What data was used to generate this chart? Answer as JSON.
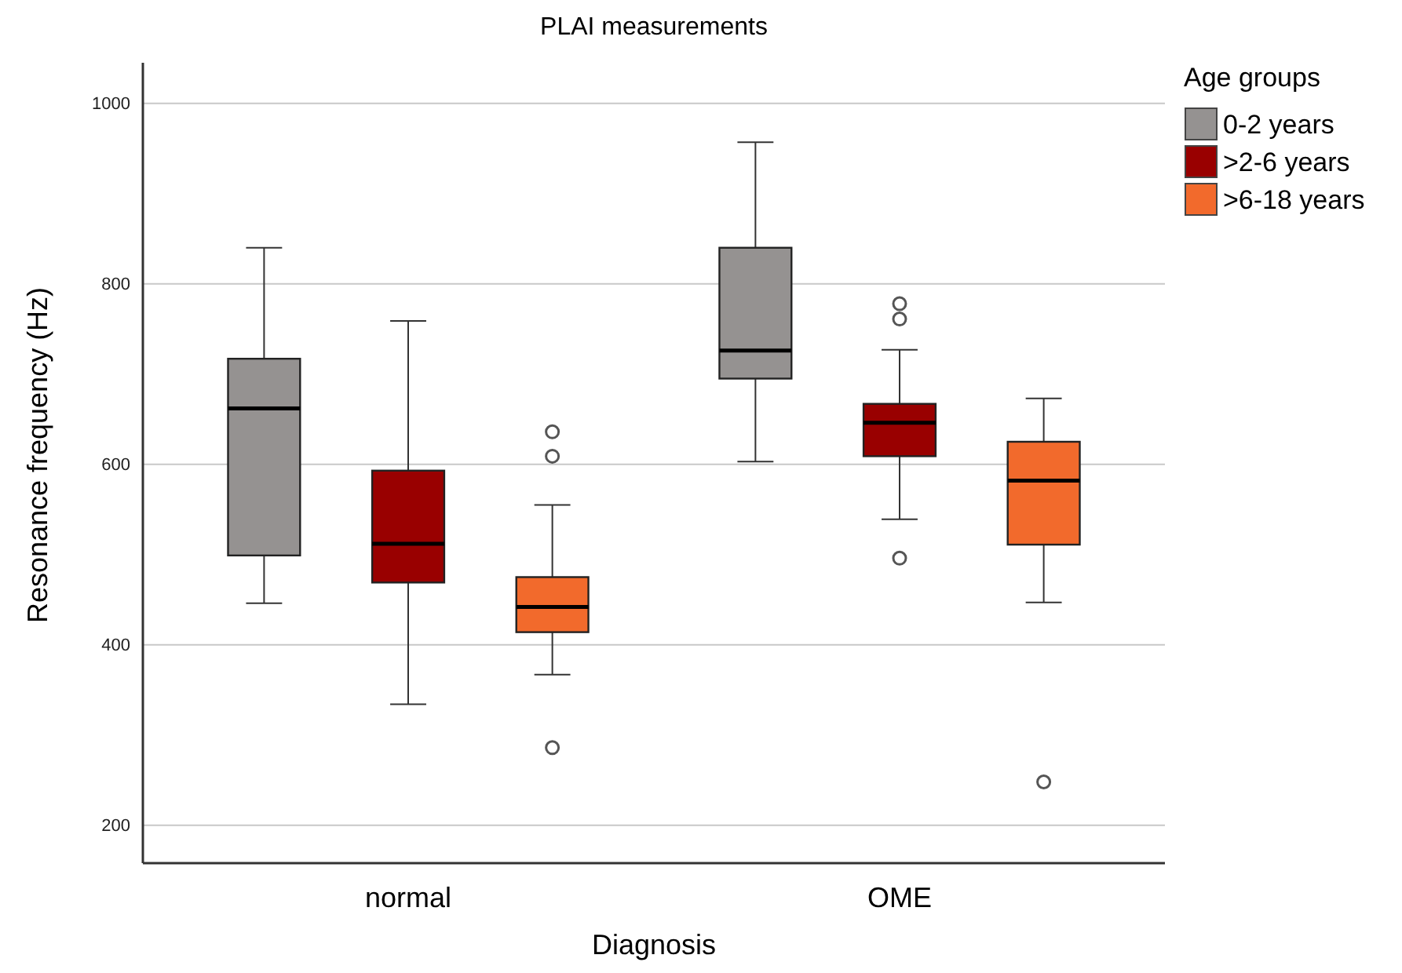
{
  "chart_data": {
    "type": "box",
    "title": "PLAI measurements",
    "xlabel": "Diagnosis",
    "ylabel": "Resonance frequency (Hz)",
    "legend_title": "Age groups",
    "categories": [
      "normal",
      "OME"
    ],
    "series": [
      {
        "name": "0-2 years",
        "color": "#959291",
        "boxes": [
          {
            "low": 446,
            "q1": 499,
            "median": 662,
            "q3": 717,
            "high": 840
          },
          {
            "low": 603,
            "q1": 695,
            "median": 726,
            "q3": 840,
            "high": 957
          }
        ]
      },
      {
        "name": ">2-6 years",
        "color": "#990000",
        "boxes": [
          {
            "low": 334,
            "q1": 469,
            "median": 512,
            "q3": 593,
            "high": 759
          },
          {
            "low": 539,
            "q1": 609,
            "median": 646,
            "q3": 667,
            "high": 727,
            "outliers": [
              778,
              761,
              496
            ]
          }
        ]
      },
      {
        "name": ">6-18 years",
        "color": "#f26a2c",
        "boxes": [
          {
            "low": 367,
            "q1": 414,
            "median": 442,
            "q3": 475,
            "high": 555,
            "outliers": [
              636,
              609,
              286
            ]
          },
          {
            "low": 447,
            "q1": 511,
            "median": 582,
            "q3": 625,
            "high": 673,
            "outliers": [
              248
            ]
          }
        ]
      }
    ],
    "ylim": [
      158,
      1045
    ],
    "yticks": [
      200,
      400,
      600,
      800,
      1000
    ],
    "grid": "y",
    "legend": "top right"
  }
}
